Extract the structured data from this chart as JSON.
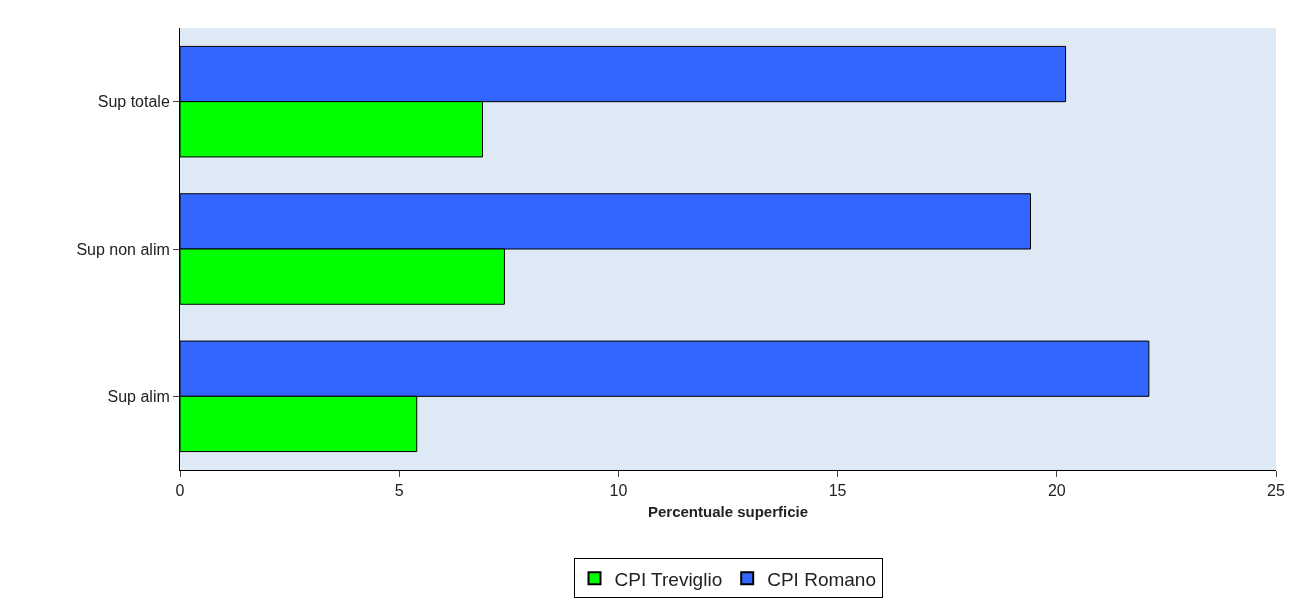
{
  "chart_data": {
    "type": "bar",
    "orientation": "horizontal",
    "xlabel": "Percentuale superficie",
    "categories": [
      "Sup totale",
      "Sup non alim",
      "Sup alim"
    ],
    "series": [
      {
        "name": "CPI Treviglio",
        "color": "#00ff00",
        "values": [
          6.9,
          7.4,
          5.4
        ]
      },
      {
        "name": "CPI Romano",
        "color": "#3366ff",
        "values": [
          20.2,
          19.4,
          22.1
        ]
      }
    ],
    "xlim": [
      0,
      25
    ],
    "xticks": [
      0,
      5,
      10,
      15,
      20,
      25
    ],
    "grid": false,
    "legend": "bottom"
  }
}
